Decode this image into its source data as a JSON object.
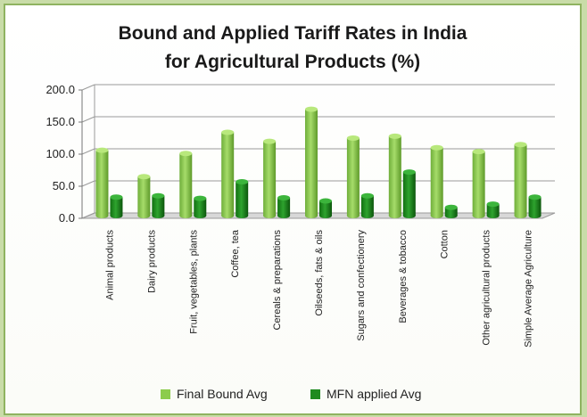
{
  "chart_data": {
    "type": "bar",
    "title_lines": [
      "Bound and Applied Tariff Rates in India",
      "for Agricultural Products (%)"
    ],
    "categories": [
      "Animal products",
      "Dairy products",
      "Fruit, vegetables, plants",
      "Coffee, tea",
      "Cereals & preparations",
      "Oilseeds, fats & oils",
      "Sugars and confectionery",
      "Beverages & tobacco",
      "Cotton",
      "Other agricultural products",
      "Simple Average Agriculture"
    ],
    "series": [
      {
        "name": "Final Bound Avg",
        "values": [
          106,
          65,
          101,
          134,
          120,
          170,
          125,
          128,
          110,
          104,
          115
        ]
      },
      {
        "name": "MFN applied Avg",
        "values": [
          33,
          35,
          31,
          57,
          32,
          27,
          35,
          72,
          17,
          22,
          33
        ]
      }
    ],
    "yticks": [
      "0.0",
      "50.0",
      "100.0",
      "150.0",
      "200.0"
    ],
    "ylim": [
      0,
      200
    ],
    "grid": true,
    "legend_position": "bottom",
    "colors": {
      "bound": "#8ccc4c",
      "bound_dark": "#5e9a2a",
      "applied": "#1f8a1f",
      "applied_dark": "#0e5c0e"
    }
  }
}
